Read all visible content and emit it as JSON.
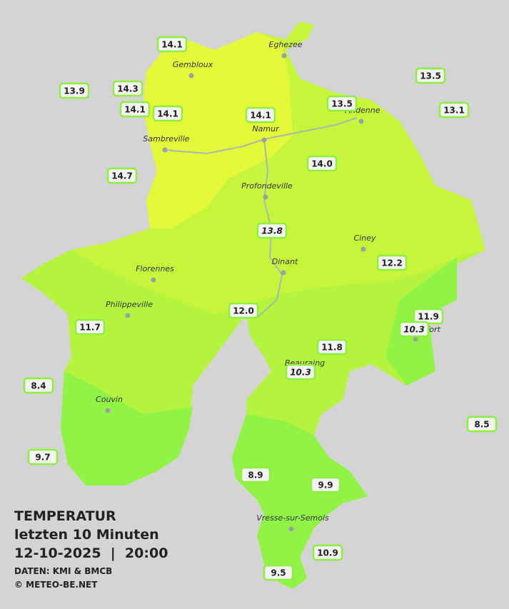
{
  "title": {
    "line1": "TEMPERATUR",
    "line2": "letzten 10 Minuten",
    "line3": "12-10-2025  |  20:00",
    "source": "DATEN: KMI & BMCB",
    "copyright": "© METEO-BE.NET"
  },
  "towns": [
    "Eghezee",
    "Gembloux",
    "Andenne",
    "Namur",
    "Sambreville",
    "Profondeville",
    "Ciney",
    "Dinant",
    "Florennes",
    "Philippeville",
    "Rochefort",
    "Beauraing",
    "Couvin",
    "Vresse-sur-Semois"
  ],
  "stations": [
    "14.1",
    "13.9",
    "14.3",
    "14.1",
    "14.1",
    "14.1",
    "13.5",
    "13.5",
    "13.1",
    "14.7",
    "14.0",
    "13.8",
    "12.2",
    "12.0",
    "11.9",
    "10.3",
    "11.7",
    "11.8",
    "10.3",
    "8.4",
    "8.5",
    "9.7",
    "8.9",
    "9.9",
    "10.9",
    "9.5"
  ]
}
